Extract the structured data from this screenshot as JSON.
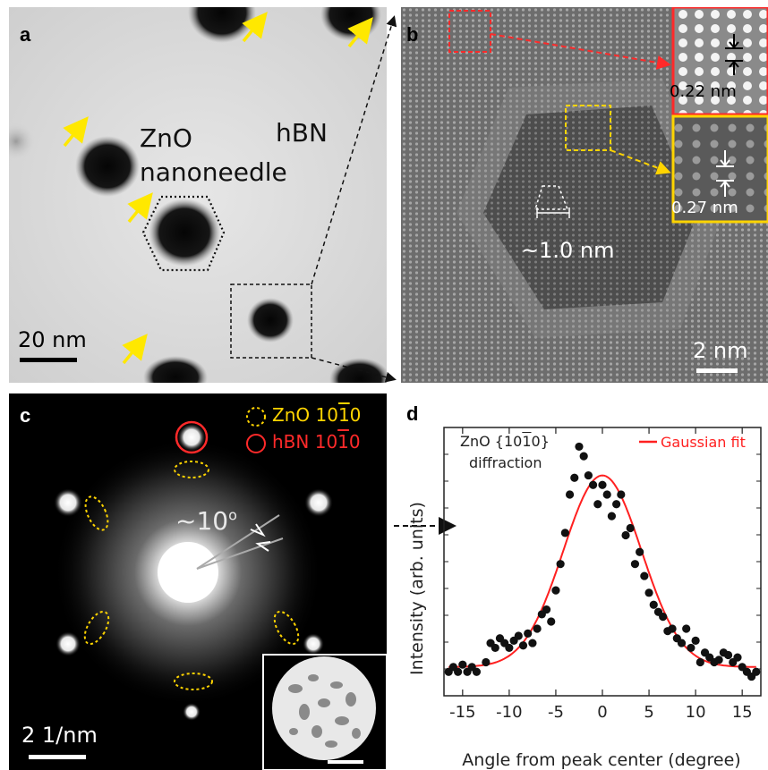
{
  "panel_a": {
    "label": "a",
    "text_zno": "ZnO",
    "text_nanoneedle": "nanoneedle",
    "text_hbn": "hBN",
    "scalebar": "20 nm",
    "arrow_color": "#ffe800"
  },
  "panel_b": {
    "label": "b",
    "spacing_center": "~1.0 nm",
    "inset_top_spacing": "0.22 nm",
    "inset_bottom_spacing": "0.27 nm",
    "scalebar": "2 nm",
    "inset_top_color": "#ff2a2a",
    "inset_bottom_color": "#ffd400"
  },
  "panel_c": {
    "label": "c",
    "legend_zno": "ZnO 10",
    "legend_zno_overbar": "1",
    "legend_zno_tail": "0",
    "legend_hbn": "hBN 10",
    "legend_hbn_overbar": "1",
    "legend_hbn_tail": "0",
    "angle_text": "~10",
    "angle_sup": "o",
    "scalebar": "2 1/nm",
    "zno_color": "#ffd400",
    "hbn_color": "#ff2a2a"
  },
  "panel_d": {
    "label": "d",
    "annotation_line1": "ZnO {10",
    "annotation_overbar": "1",
    "annotation_tail": "0}",
    "annotation_line2": "diffraction",
    "legend_fit": "Gaussian fit",
    "fit_color": "#ff2020"
  },
  "chart_data": {
    "type": "scatter",
    "xlabel": "Angle from peak center (degree)",
    "ylabel": "Intensity (arb. units)",
    "xlim": [
      -17,
      17
    ],
    "ylim": [
      0,
      1.12
    ],
    "xticks": [
      -15,
      -10,
      -5,
      0,
      5,
      10,
      15
    ],
    "series": [
      {
        "name": "ZnO {10-10} diffraction",
        "x": [
          -16.5,
          -16.0,
          -15.5,
          -15.0,
          -14.5,
          -14.0,
          -13.5,
          -12.5,
          -12.0,
          -11.5,
          -11.0,
          -10.5,
          -10.0,
          -9.5,
          -9.0,
          -8.5,
          -8.0,
          -7.5,
          -7.0,
          -6.5,
          -6.0,
          -5.5,
          -5.0,
          -4.5,
          -4.0,
          -3.5,
          -3.0,
          -2.5,
          -2.0,
          -1.5,
          -1.0,
          -0.5,
          0.0,
          0.5,
          1.0,
          1.5,
          2.0,
          2.5,
          3.0,
          3.5,
          4.0,
          4.5,
          5.0,
          5.5,
          6.0,
          6.5,
          7.0,
          7.5,
          8.0,
          8.5,
          9.0,
          9.5,
          10.0,
          10.5,
          11.0,
          11.5,
          12.0,
          12.5,
          13.0,
          13.5,
          14.0,
          14.5,
          15.0,
          15.5,
          16.0,
          16.5
        ],
        "values": [
          0.1,
          0.12,
          0.1,
          0.13,
          0.1,
          0.12,
          0.1,
          0.14,
          0.22,
          0.2,
          0.24,
          0.22,
          0.2,
          0.23,
          0.25,
          0.21,
          0.26,
          0.22,
          0.28,
          0.34,
          0.36,
          0.31,
          0.44,
          0.55,
          0.68,
          0.84,
          0.91,
          1.04,
          1.0,
          0.92,
          0.88,
          0.8,
          0.88,
          0.84,
          0.75,
          0.8,
          0.84,
          0.67,
          0.7,
          0.55,
          0.6,
          0.5,
          0.43,
          0.38,
          0.35,
          0.33,
          0.27,
          0.28,
          0.24,
          0.22,
          0.28,
          0.2,
          0.23,
          0.14,
          0.18,
          0.16,
          0.14,
          0.15,
          0.18,
          0.17,
          0.14,
          0.16,
          0.12,
          0.1,
          0.08,
          0.1
        ]
      },
      {
        "name": "Gaussian fit",
        "type": "line",
        "amplitude": 0.8,
        "center": 0.0,
        "sigma": 4.2,
        "baseline": 0.12
      }
    ]
  }
}
